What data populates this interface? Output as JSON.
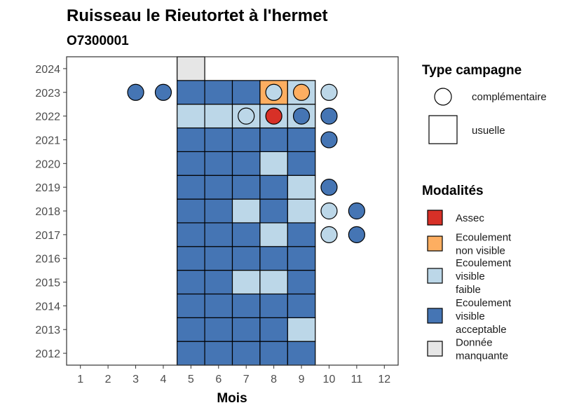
{
  "chart_data": {
    "type": "heatmap",
    "title": "Ruisseau le Rieutortet à l'hermet",
    "subtitle": "O7300001",
    "xlabel": "Mois",
    "ylabel": "",
    "x_ticks": [
      "1",
      "2",
      "3",
      "4",
      "5",
      "6",
      "7",
      "8",
      "9",
      "10",
      "11",
      "12"
    ],
    "y_ticks": [
      "2012",
      "2013",
      "2014",
      "2015",
      "2016",
      "2017",
      "2018",
      "2019",
      "2020",
      "2021",
      "2022",
      "2023",
      "2024"
    ],
    "xlim": [
      0.5,
      12.5
    ],
    "ylim": [
      2011.5,
      2024.5
    ],
    "colors": {
      "Assec": "#d73027",
      "Ecoulement non visible": "#fdae61",
      "Ecoulement visible faible": "#bcd7e8",
      "Ecoulement visible acceptable": "#4575b4",
      "Donnée manquante": "#e6e6e6"
    },
    "legend_type": {
      "title": "Type campagne",
      "entries": [
        {
          "label": "complémentaire",
          "shape": "circle"
        },
        {
          "label": "usuelle",
          "shape": "square"
        }
      ]
    },
    "legend_modalites": {
      "title": "Modalités",
      "entries": [
        {
          "key": "Assec",
          "lines": [
            "Assec"
          ]
        },
        {
          "key": "Ecoulement non visible",
          "lines": [
            "Ecoulement",
            "non visible"
          ]
        },
        {
          "key": "Ecoulement visible faible",
          "lines": [
            "Ecoulement",
            "visible",
            "faible"
          ]
        },
        {
          "key": "Ecoulement visible acceptable",
          "lines": [
            "Ecoulement",
            "visible",
            "acceptable"
          ]
        },
        {
          "key": "Donnée manquante",
          "lines": [
            "Donnée",
            "manquante"
          ]
        }
      ]
    },
    "usuelle": [
      {
        "year": 2012,
        "month": 5,
        "v": "Ecoulement visible acceptable"
      },
      {
        "year": 2012,
        "month": 6,
        "v": "Ecoulement visible acceptable"
      },
      {
        "year": 2012,
        "month": 7,
        "v": "Ecoulement visible acceptable"
      },
      {
        "year": 2012,
        "month": 8,
        "v": "Ecoulement visible acceptable"
      },
      {
        "year": 2012,
        "month": 9,
        "v": "Ecoulement visible acceptable"
      },
      {
        "year": 2013,
        "month": 5,
        "v": "Ecoulement visible acceptable"
      },
      {
        "year": 2013,
        "month": 6,
        "v": "Ecoulement visible acceptable"
      },
      {
        "year": 2013,
        "month": 7,
        "v": "Ecoulement visible acceptable"
      },
      {
        "year": 2013,
        "month": 8,
        "v": "Ecoulement visible acceptable"
      },
      {
        "year": 2013,
        "month": 9,
        "v": "Ecoulement visible faible"
      },
      {
        "year": 2014,
        "month": 5,
        "v": "Ecoulement visible acceptable"
      },
      {
        "year": 2014,
        "month": 6,
        "v": "Ecoulement visible acceptable"
      },
      {
        "year": 2014,
        "month": 7,
        "v": "Ecoulement visible acceptable"
      },
      {
        "year": 2014,
        "month": 8,
        "v": "Ecoulement visible acceptable"
      },
      {
        "year": 2014,
        "month": 9,
        "v": "Ecoulement visible acceptable"
      },
      {
        "year": 2015,
        "month": 5,
        "v": "Ecoulement visible acceptable"
      },
      {
        "year": 2015,
        "month": 6,
        "v": "Ecoulement visible acceptable"
      },
      {
        "year": 2015,
        "month": 7,
        "v": "Ecoulement visible faible"
      },
      {
        "year": 2015,
        "month": 8,
        "v": "Ecoulement visible faible"
      },
      {
        "year": 2015,
        "month": 9,
        "v": "Ecoulement visible acceptable"
      },
      {
        "year": 2016,
        "month": 5,
        "v": "Ecoulement visible acceptable"
      },
      {
        "year": 2016,
        "month": 6,
        "v": "Ecoulement visible acceptable"
      },
      {
        "year": 2016,
        "month": 7,
        "v": "Ecoulement visible acceptable"
      },
      {
        "year": 2016,
        "month": 8,
        "v": "Ecoulement visible acceptable"
      },
      {
        "year": 2016,
        "month": 9,
        "v": "Ecoulement visible acceptable"
      },
      {
        "year": 2017,
        "month": 5,
        "v": "Ecoulement visible acceptable"
      },
      {
        "year": 2017,
        "month": 6,
        "v": "Ecoulement visible acceptable"
      },
      {
        "year": 2017,
        "month": 7,
        "v": "Ecoulement visible acceptable"
      },
      {
        "year": 2017,
        "month": 8,
        "v": "Ecoulement visible faible"
      },
      {
        "year": 2017,
        "month": 9,
        "v": "Ecoulement visible acceptable"
      },
      {
        "year": 2018,
        "month": 5,
        "v": "Ecoulement visible acceptable"
      },
      {
        "year": 2018,
        "month": 6,
        "v": "Ecoulement visible acceptable"
      },
      {
        "year": 2018,
        "month": 7,
        "v": "Ecoulement visible faible"
      },
      {
        "year": 2018,
        "month": 8,
        "v": "Ecoulement visible acceptable"
      },
      {
        "year": 2018,
        "month": 9,
        "v": "Ecoulement visible faible"
      },
      {
        "year": 2019,
        "month": 5,
        "v": "Ecoulement visible acceptable"
      },
      {
        "year": 2019,
        "month": 6,
        "v": "Ecoulement visible acceptable"
      },
      {
        "year": 2019,
        "month": 7,
        "v": "Ecoulement visible acceptable"
      },
      {
        "year": 2019,
        "month": 8,
        "v": "Ecoulement visible acceptable"
      },
      {
        "year": 2019,
        "month": 9,
        "v": "Ecoulement visible faible"
      },
      {
        "year": 2020,
        "month": 5,
        "v": "Ecoulement visible acceptable"
      },
      {
        "year": 2020,
        "month": 6,
        "v": "Ecoulement visible acceptable"
      },
      {
        "year": 2020,
        "month": 7,
        "v": "Ecoulement visible acceptable"
      },
      {
        "year": 2020,
        "month": 8,
        "v": "Ecoulement visible faible"
      },
      {
        "year": 2020,
        "month": 9,
        "v": "Ecoulement visible acceptable"
      },
      {
        "year": 2021,
        "month": 5,
        "v": "Ecoulement visible acceptable"
      },
      {
        "year": 2021,
        "month": 6,
        "v": "Ecoulement visible acceptable"
      },
      {
        "year": 2021,
        "month": 7,
        "v": "Ecoulement visible acceptable"
      },
      {
        "year": 2021,
        "month": 8,
        "v": "Ecoulement visible acceptable"
      },
      {
        "year": 2021,
        "month": 9,
        "v": "Ecoulement visible acceptable"
      },
      {
        "year": 2022,
        "month": 5,
        "v": "Ecoulement visible faible"
      },
      {
        "year": 2022,
        "month": 6,
        "v": "Ecoulement visible faible"
      },
      {
        "year": 2022,
        "month": 7,
        "v": "Ecoulement visible faible"
      },
      {
        "year": 2022,
        "month": 8,
        "v": "Ecoulement visible faible"
      },
      {
        "year": 2022,
        "month": 9,
        "v": "Ecoulement visible faible"
      },
      {
        "year": 2023,
        "month": 5,
        "v": "Ecoulement visible acceptable"
      },
      {
        "year": 2023,
        "month": 6,
        "v": "Ecoulement visible acceptable"
      },
      {
        "year": 2023,
        "month": 7,
        "v": "Ecoulement visible acceptable"
      },
      {
        "year": 2023,
        "month": 8,
        "v": "Ecoulement non visible"
      },
      {
        "year": 2023,
        "month": 9,
        "v": "Ecoulement visible faible"
      },
      {
        "year": 2024,
        "month": 5,
        "v": "Donnée manquante"
      }
    ],
    "complementaire": [
      {
        "year": 2023,
        "month": 3,
        "v": "Ecoulement visible acceptable"
      },
      {
        "year": 2023,
        "month": 4,
        "v": "Ecoulement visible acceptable"
      },
      {
        "year": 2023,
        "month": 8,
        "v": "Ecoulement visible faible"
      },
      {
        "year": 2023,
        "month": 9,
        "v": "Ecoulement non visible"
      },
      {
        "year": 2023,
        "month": 10,
        "v": "Ecoulement visible faible"
      },
      {
        "year": 2022,
        "month": 7,
        "v": "Ecoulement visible faible"
      },
      {
        "year": 2022,
        "month": 8,
        "v": "Assec"
      },
      {
        "year": 2022,
        "month": 9,
        "v": "Ecoulement visible acceptable"
      },
      {
        "year": 2022,
        "month": 10,
        "v": "Ecoulement visible acceptable"
      },
      {
        "year": 2021,
        "month": 10,
        "v": "Ecoulement visible acceptable"
      },
      {
        "year": 2019,
        "month": 10,
        "v": "Ecoulement visible acceptable"
      },
      {
        "year": 2018,
        "month": 10,
        "v": "Ecoulement visible faible"
      },
      {
        "year": 2018,
        "month": 11,
        "v": "Ecoulement visible acceptable"
      },
      {
        "year": 2017,
        "month": 10,
        "v": "Ecoulement visible faible"
      },
      {
        "year": 2017,
        "month": 11,
        "v": "Ecoulement visible acceptable"
      }
    ]
  }
}
